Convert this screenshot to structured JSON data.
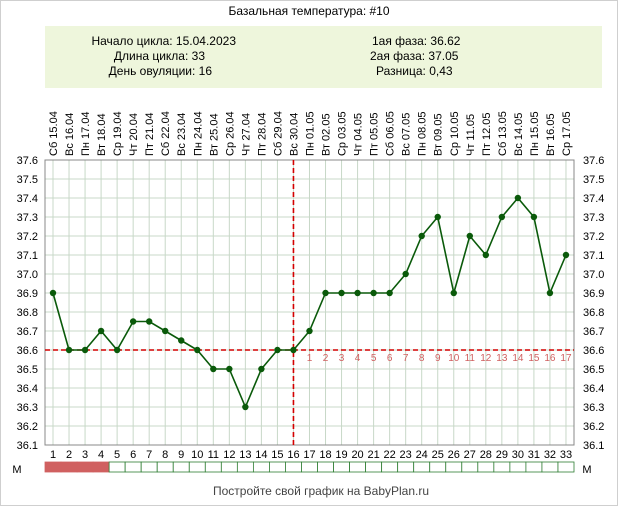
{
  "title": "Базальная температура: #10",
  "info": {
    "cycle_start": "Начало цикла: 15.04.2023",
    "cycle_length": "Длина цикла: 33",
    "ovulation_day": "День овуляции: 16",
    "phase1": "1ая фаза: 36.62",
    "phase2": "2ая фаза: 37.05",
    "difference": "Разница: 0,43"
  },
  "footer": "Постройте свой график на BabyPlan.ru",
  "m_label": "М",
  "colors": {
    "line": "#0a5a0a",
    "marker": "#0a5a0a",
    "guide": "#d40000",
    "grid": "#c8d8c8",
    "info_bg": "#eef6dc",
    "period": "#d06060",
    "phase_label": "#d06060"
  },
  "chart_data": {
    "type": "line",
    "title": "Базальная температура: #10",
    "x": [
      1,
      2,
      3,
      4,
      5,
      6,
      7,
      8,
      9,
      10,
      11,
      12,
      13,
      14,
      15,
      16,
      17,
      18,
      19,
      20,
      21,
      22,
      23,
      24,
      25,
      26,
      27,
      28,
      29,
      30,
      31,
      32,
      33
    ],
    "dates": [
      "Сб 15.04",
      "Вс 16.04",
      "Пн 17.04",
      "Вт 18.04",
      "Ср 19.04",
      "Чт 20.04",
      "Пт 21.04",
      "Сб 22.04",
      "Вс 23.04",
      "Пн 24.04",
      "Вт 25.04",
      "Ср 26.04",
      "Чт 27.04",
      "Пт 28.04",
      "Сб 29.04",
      "Вс 30.04",
      "Пн 01.05",
      "Вт 02.05",
      "Ср 03.05",
      "Чт 04.05",
      "Пт 05.05",
      "Сб 06.05",
      "Вс 07.05",
      "Пн 08.05",
      "Вт 09.05",
      "Ср 10.05",
      "Чт 11.05",
      "Пт 12.05",
      "Сб 13.05",
      "Вс 14.05",
      "Пн 15.05",
      "Вт 16.05",
      "Ср 17.05"
    ],
    "series": [
      {
        "values": [
          36.9,
          36.6,
          36.6,
          36.7,
          36.6,
          36.75,
          36.75,
          36.7,
          36.65,
          36.6,
          36.5,
          36.5,
          36.3,
          36.5,
          36.6,
          36.6,
          36.7,
          36.9,
          36.9,
          36.9,
          36.9,
          36.9,
          37.0,
          37.2,
          37.3,
          36.9,
          37.2,
          37.1,
          37.3,
          37.4,
          37.3,
          36.9,
          37.1
        ]
      }
    ],
    "ylim": [
      36.1,
      37.6
    ],
    "yticks": [
      "36.1",
      "36.2",
      "36.3",
      "36.4",
      "36.5",
      "36.6",
      "36.7",
      "36.8",
      "36.9",
      "37.0",
      "37.1",
      "37.2",
      "37.3",
      "37.4",
      "37.5",
      "37.6"
    ],
    "coverline": 36.6,
    "ovulation_day": 16,
    "phase2_day_labels": [
      "1",
      "2",
      "3",
      "4",
      "5",
      "6",
      "7",
      "8",
      "9",
      "10",
      "11",
      "12",
      "13",
      "14",
      "15",
      "16",
      "17"
    ],
    "period_days": [
      1,
      2,
      3,
      4
    ],
    "grid": true
  }
}
